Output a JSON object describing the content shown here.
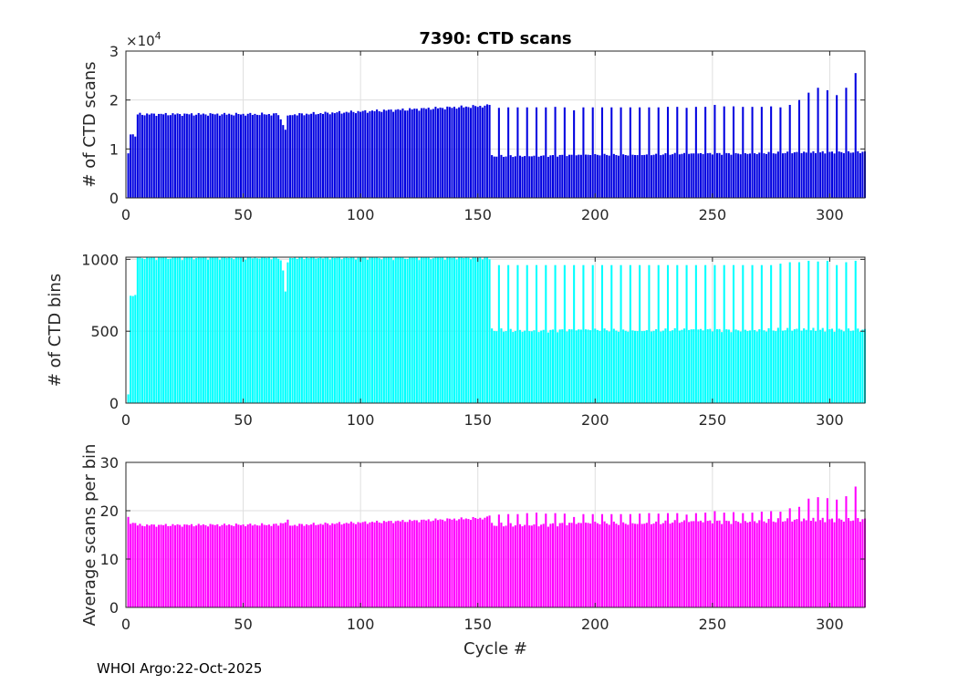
{
  "chart_data": [
    {
      "type": "bar",
      "title": "7390: CTD scans",
      "xlabel": "",
      "ylabel": "# of CTD scans",
      "y_exponent_label": "×10",
      "y_exponent_power": "4",
      "color": "#0000e0",
      "xlim": [
        0,
        315
      ],
      "ylim": [
        0,
        30000
      ],
      "xticks": [
        0,
        50,
        100,
        150,
        200,
        250,
        300
      ],
      "yticks": [
        0,
        10000,
        20000,
        30000
      ],
      "ytick_labels": [
        "0",
        "1",
        "2",
        "3"
      ],
      "grid": true,
      "segments": [
        {
          "x": [
            1,
            1
          ],
          "y": [
            9000,
            9000
          ]
        },
        {
          "x": [
            2,
            3
          ],
          "y": [
            13200,
            13000
          ]
        },
        {
          "x": [
            4,
            4
          ],
          "y": [
            12500,
            12500
          ]
        },
        {
          "x": [
            5,
            65
          ],
          "y": [
            17100,
            17100
          ]
        },
        {
          "x": [
            66,
            66
          ],
          "y": [
            16000,
            16000
          ]
        },
        {
          "x": [
            67,
            67
          ],
          "y": [
            15000,
            15000
          ]
        },
        {
          "x": [
            68,
            68
          ],
          "y": [
            14000,
            14000
          ]
        },
        {
          "x": [
            69,
            69
          ],
          "y": [
            16500,
            16500
          ]
        },
        {
          "x": [
            70,
            154
          ],
          "y": [
            17000,
            18800
          ]
        }
      ],
      "series": [
        {
          "name": "low",
          "x_range": [
            155,
            315
          ],
          "values": [
            8500,
            9400
          ]
        },
        {
          "name": "high",
          "x": [
            155,
            159,
            163,
            167,
            171,
            175,
            179,
            183,
            187,
            191,
            195,
            199,
            203,
            207,
            211,
            215,
            219,
            223,
            227,
            231,
            235,
            239,
            243,
            247,
            251,
            255,
            259,
            263,
            267,
            271,
            275,
            279,
            283,
            287,
            291,
            295,
            299,
            303,
            307,
            311
          ],
          "values": [
            19000,
            18400,
            18500,
            18500,
            18500,
            18500,
            18500,
            18600,
            18500,
            17900,
            18500,
            18500,
            18500,
            18500,
            18500,
            18500,
            18500,
            18500,
            18500,
            18600,
            18600,
            18400,
            18600,
            18600,
            19000,
            18700,
            18700,
            18600,
            18600,
            18600,
            18700,
            18500,
            19000,
            20000,
            21500,
            22500,
            22000,
            21000,
            22500,
            25500
          ]
        }
      ]
    },
    {
      "type": "bar",
      "title": "",
      "xlabel": "",
      "ylabel": "# of CTD bins",
      "color": "#00ffff",
      "xlim": [
        0,
        315
      ],
      "ylim": [
        0,
        1015
      ],
      "xticks": [
        0,
        50,
        100,
        150,
        200,
        250,
        300
      ],
      "yticks": [
        0,
        500,
        1000
      ],
      "grid": true,
      "segments": [
        {
          "x": [
            1,
            1
          ],
          "y": [
            60,
            60
          ]
        },
        {
          "x": [
            2,
            3
          ],
          "y": [
            760,
            745
          ]
        },
        {
          "x": [
            4,
            4
          ],
          "y": [
            750,
            750
          ]
        },
        {
          "x": [
            5,
            65
          ],
          "y": [
            1015,
            1015
          ]
        },
        {
          "x": [
            66,
            66
          ],
          "y": [
            990,
            990
          ]
        },
        {
          "x": [
            67,
            67
          ],
          "y": [
            930,
            930
          ]
        },
        {
          "x": [
            68,
            68
          ],
          "y": [
            780,
            780
          ]
        },
        {
          "x": [
            69,
            69
          ],
          "y": [
            960,
            960
          ]
        },
        {
          "x": [
            70,
            154
          ],
          "y": [
            1015,
            1015
          ]
        }
      ],
      "series": [
        {
          "name": "low",
          "x_range": [
            155,
            315
          ],
          "values": [
            505,
            510
          ]
        },
        {
          "name": "high",
          "x": [
            155,
            159,
            163,
            167,
            171,
            175,
            179,
            183,
            187,
            191,
            195,
            199,
            203,
            207,
            211,
            215,
            219,
            223,
            227,
            231,
            235,
            239,
            243,
            247,
            251,
            255,
            259,
            263,
            267,
            271,
            275,
            279,
            283,
            287,
            291,
            295,
            299,
            303,
            307,
            311
          ],
          "values": [
            1000,
            960,
            960,
            960,
            960,
            960,
            960,
            960,
            960,
            960,
            960,
            960,
            960,
            960,
            960,
            960,
            960,
            960,
            960,
            960,
            960,
            960,
            960,
            960,
            960,
            960,
            960,
            960,
            960,
            960,
            960,
            970,
            980,
            980,
            990,
            985,
            990,
            960,
            980,
            990
          ]
        }
      ]
    },
    {
      "type": "bar",
      "title": "",
      "xlabel": "Cycle #",
      "ylabel": "Average scans per bin",
      "color": "#ff00ff",
      "xlim": [
        0,
        315
      ],
      "ylim": [
        0,
        30
      ],
      "xticks": [
        0,
        50,
        100,
        150,
        200,
        250,
        300
      ],
      "yticks": [
        0,
        10,
        20,
        30
      ],
      "grid": true,
      "segments": [
        {
          "x": [
            1,
            1
          ],
          "y": [
            18.5,
            18.5
          ]
        },
        {
          "x": [
            2,
            4
          ],
          "y": [
            17.6,
            17.4
          ]
        },
        {
          "x": [
            5,
            65
          ],
          "y": [
            17.0,
            17.1
          ]
        },
        {
          "x": [
            66,
            69
          ],
          "y": [
            17.4,
            17.8
          ]
        },
        {
          "x": [
            70,
            154
          ],
          "y": [
            17.0,
            18.5
          ]
        }
      ],
      "series": [
        {
          "name": "low",
          "x_range": [
            155,
            315
          ],
          "values": [
            17.0,
            18.2
          ]
        },
        {
          "name": "high",
          "x": [
            155,
            159,
            163,
            167,
            171,
            175,
            179,
            183,
            187,
            191,
            195,
            199,
            203,
            207,
            211,
            215,
            219,
            223,
            227,
            231,
            235,
            239,
            243,
            247,
            251,
            255,
            259,
            263,
            267,
            271,
            275,
            279,
            283,
            287,
            291,
            295,
            299,
            303,
            307,
            311
          ],
          "values": [
            19.0,
            19.2,
            19.3,
            19.3,
            19.5,
            19.6,
            19.4,
            19.5,
            19.4,
            18.7,
            19.3,
            19.3,
            19.3,
            19.3,
            19.3,
            19.3,
            19.4,
            19.5,
            19.4,
            19.5,
            19.5,
            19.2,
            19.5,
            19.6,
            19.9,
            19.6,
            19.7,
            19.5,
            19.6,
            19.8,
            19.9,
            19.8,
            20.5,
            20.8,
            22.5,
            22.8,
            22.6,
            22.3,
            23.0,
            25.0
          ]
        }
      ]
    }
  ],
  "footer": "WHOI Argo:22-Oct-2025"
}
